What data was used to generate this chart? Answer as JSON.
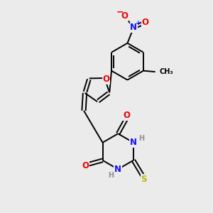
{
  "bg_color": "#ebebeb",
  "atom_colors": {
    "C": "#000000",
    "N": "#1010ff",
    "O": "#ee0000",
    "S": "#b8b800",
    "H": "#909090"
  },
  "bond_color": "#000000",
  "bond_width": 1.4,
  "font_size_atoms": 8.5,
  "font_size_small": 7.0
}
